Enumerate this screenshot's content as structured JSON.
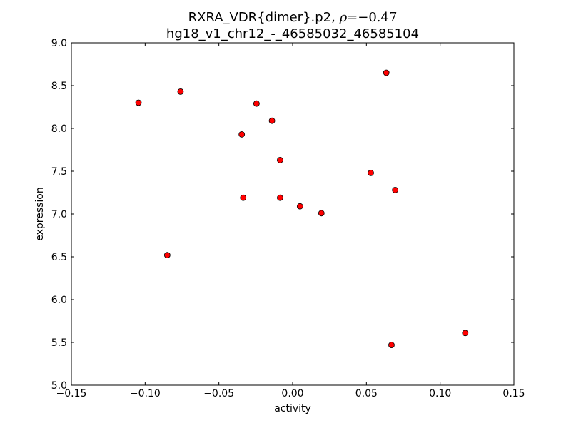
{
  "chart_data": {
    "type": "scatter",
    "title_line1_prefix": "RXRA_VDR{dimer}.p2, ",
    "title_line1_rho": "ρ",
    "title_line1_eq": "=−0.47",
    "title_line2": "hg18_v1_chr12_-_46585032_46585104",
    "xlabel": "activity",
    "ylabel": "expression",
    "xlim": [
      -0.15,
      0.15
    ],
    "ylim": [
      5.0,
      9.0
    ],
    "x_ticks": [
      -0.15,
      -0.1,
      -0.05,
      0.0,
      0.05,
      0.1,
      0.15
    ],
    "x_tick_labels": [
      "−0.15",
      "−0.10",
      "−0.05",
      "0.00",
      "0.05",
      "0.10",
      "0.15"
    ],
    "y_ticks": [
      5.0,
      5.5,
      6.0,
      6.5,
      7.0,
      7.5,
      8.0,
      8.5,
      9.0
    ],
    "y_tick_labels": [
      "5.0",
      "5.5",
      "6.0",
      "6.5",
      "7.0",
      "7.5",
      "8.0",
      "8.5",
      "9.0"
    ],
    "marker_color": "#ff0000",
    "marker_edge": "#000000",
    "grid": false,
    "points": [
      {
        "x": -0.1045,
        "y": 8.3
      },
      {
        "x": -0.076,
        "y": 8.43
      },
      {
        "x": -0.085,
        "y": 6.52
      },
      {
        "x": -0.0345,
        "y": 7.93
      },
      {
        "x": -0.0335,
        "y": 7.19
      },
      {
        "x": -0.0245,
        "y": 8.29
      },
      {
        "x": -0.014,
        "y": 8.09
      },
      {
        "x": -0.0085,
        "y": 7.63
      },
      {
        "x": -0.0085,
        "y": 7.19
      },
      {
        "x": 0.005,
        "y": 7.09
      },
      {
        "x": 0.0195,
        "y": 7.01
      },
      {
        "x": 0.053,
        "y": 7.48
      },
      {
        "x": 0.0635,
        "y": 8.65
      },
      {
        "x": 0.0695,
        "y": 7.28
      },
      {
        "x": 0.067,
        "y": 5.47
      },
      {
        "x": 0.117,
        "y": 5.61
      }
    ]
  }
}
